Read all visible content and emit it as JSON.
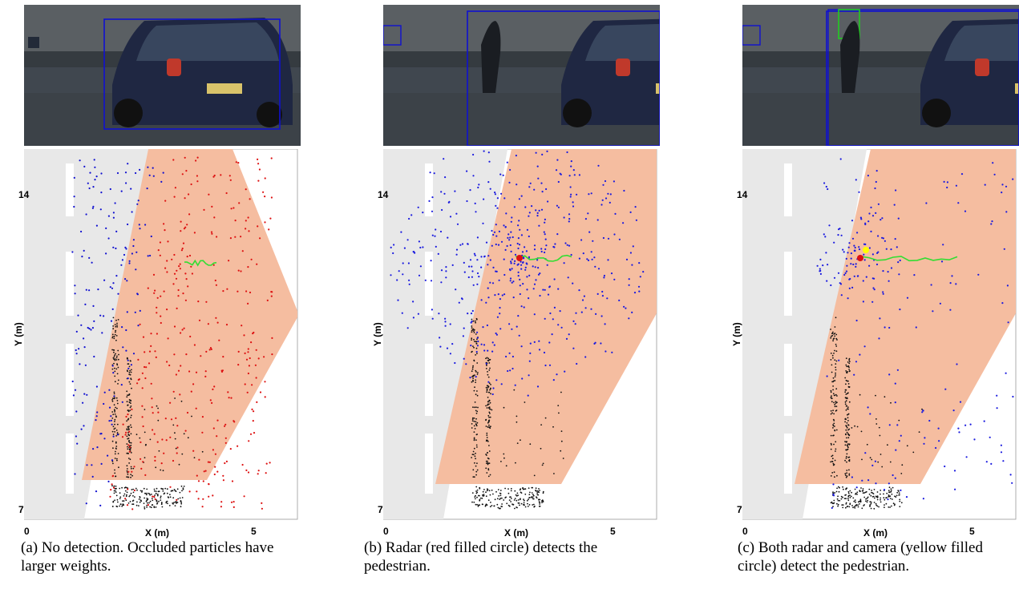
{
  "panels": [
    {
      "id": "a",
      "caption": "(a) No detection. Occluded particles have larger weights.",
      "detections": {
        "radar": false,
        "camera": false
      },
      "boxes": {
        "car_blue": true,
        "left_blue": false,
        "ped_green": false,
        "tall_blue": false
      },
      "particle_color": "#e31a1c",
      "particle_spread": "wide",
      "fov": "wide",
      "trajectory_length": "short"
    },
    {
      "id": "b",
      "caption": "(b) Radar (red filled circle) detects the pedestrian.",
      "detections": {
        "radar": true,
        "camera": false
      },
      "boxes": {
        "car_blue": true,
        "left_blue": true,
        "ped_green": false,
        "tall_blue": false
      },
      "particle_color": "#1a1adf",
      "particle_spread": "medium",
      "fov": "narrow",
      "trajectory_length": "medium"
    },
    {
      "id": "c",
      "caption": "(c) Both radar and camera (yellow filled circle) detect the pedestrian.",
      "detections": {
        "radar": true,
        "camera": true
      },
      "boxes": {
        "car_blue": true,
        "left_blue": true,
        "ped_green": true,
        "tall_blue": true
      },
      "particle_color": "#1a1adf",
      "particle_spread": "tight",
      "fov": "narrow",
      "trajectory_length": "long"
    }
  ],
  "axes": {
    "xlabel": "X (m)",
    "ylabel": "Y (m)",
    "xticks": [
      "0",
      "5"
    ],
    "yticks": [
      "14",
      "7"
    ]
  },
  "colors": {
    "fov_fill": "#f5bda0",
    "road": "#e8e8e8",
    "lane_mark": "#ffffff",
    "lidar": "#111111",
    "trajectory": "#33dd33",
    "radar_detection": "#dd1111",
    "camera_detection": "#ffff00",
    "bbox_blue": "#1010d0",
    "bbox_green": "#22cc22"
  }
}
